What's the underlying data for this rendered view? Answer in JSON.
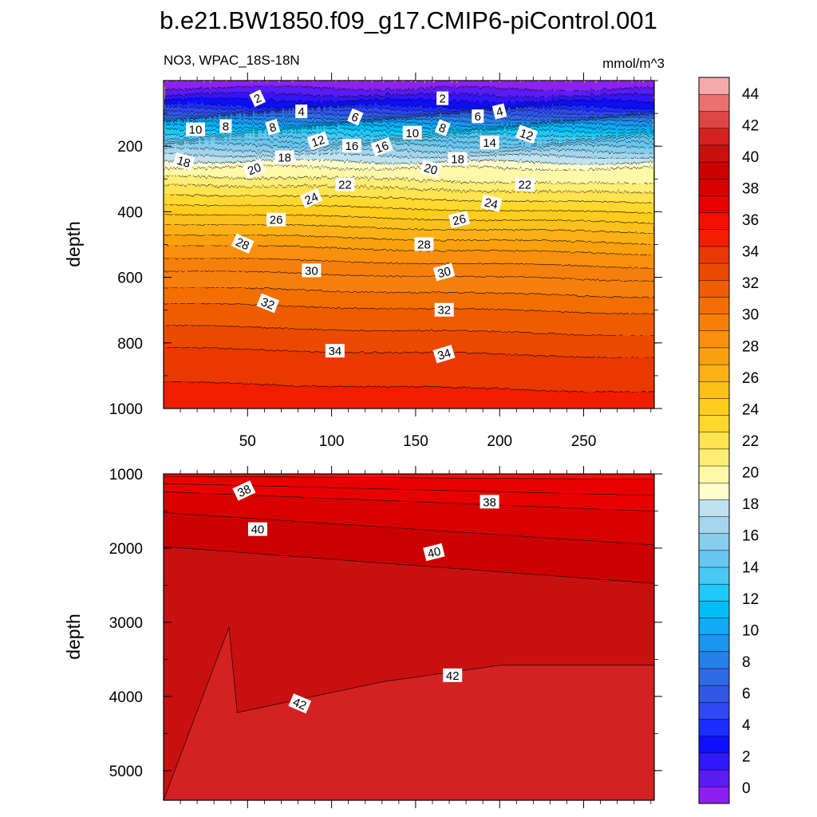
{
  "chart_data": {
    "type": "contour",
    "title": "b.e21.BW1850.f09_g17.CMIP6-piControl.001",
    "variable_label": "NO3, WPAC_18S-18N",
    "units_label": "mmol/m^3",
    "panels": [
      {
        "name": "upper-ocean",
        "ylabel": "depth",
        "ylim": [
          0,
          1000
        ],
        "xlim": [
          0,
          292
        ],
        "yticks": [
          200,
          400,
          600,
          800,
          1000
        ],
        "xticks": [
          50,
          100,
          150,
          200,
          250
        ],
        "isoline_labels": [
          {
            "value": "2",
            "x": 56,
            "depth": 55
          },
          {
            "value": "2",
            "x": 166,
            "depth": 55
          },
          {
            "value": "4",
            "x": 82,
            "depth": 95
          },
          {
            "value": "4",
            "x": 200,
            "depth": 95
          },
          {
            "value": "6",
            "x": 114,
            "depth": 112
          },
          {
            "value": "6",
            "x": 187,
            "depth": 110
          },
          {
            "value": "8",
            "x": 37,
            "depth": 140
          },
          {
            "value": "8",
            "x": 65,
            "depth": 143
          },
          {
            "value": "8",
            "x": 166,
            "depth": 145
          },
          {
            "value": "10",
            "x": 19,
            "depth": 150
          },
          {
            "value": "10",
            "x": 148,
            "depth": 160
          },
          {
            "value": "12",
            "x": 92,
            "depth": 185
          },
          {
            "value": "12",
            "x": 216,
            "depth": 165
          },
          {
            "value": "14",
            "x": 194,
            "depth": 190
          },
          {
            "value": "16",
            "x": 112,
            "depth": 200
          },
          {
            "value": "16",
            "x": 130,
            "depth": 203
          },
          {
            "value": "18",
            "x": 12,
            "depth": 248
          },
          {
            "value": "18",
            "x": 72,
            "depth": 235
          },
          {
            "value": "18",
            "x": 175,
            "depth": 240
          },
          {
            "value": "20",
            "x": 54,
            "depth": 270
          },
          {
            "value": "20",
            "x": 159,
            "depth": 270
          },
          {
            "value": "22",
            "x": 108,
            "depth": 318
          },
          {
            "value": "22",
            "x": 215,
            "depth": 318
          },
          {
            "value": "24",
            "x": 88,
            "depth": 360
          },
          {
            "value": "24",
            "x": 195,
            "depth": 375
          },
          {
            "value": "26",
            "x": 67,
            "depth": 425
          },
          {
            "value": "26",
            "x": 176,
            "depth": 425
          },
          {
            "value": "28",
            "x": 47,
            "depth": 498
          },
          {
            "value": "28",
            "x": 155,
            "depth": 500
          },
          {
            "value": "30",
            "x": 88,
            "depth": 580
          },
          {
            "value": "30",
            "x": 167,
            "depth": 585
          },
          {
            "value": "32",
            "x": 62,
            "depth": 680
          },
          {
            "value": "32",
            "x": 167,
            "depth": 700
          },
          {
            "value": "34",
            "x": 102,
            "depth": 825
          },
          {
            "value": "34",
            "x": 167,
            "depth": 835
          }
        ]
      },
      {
        "name": "deep-ocean",
        "ylabel": "depth",
        "ylim": [
          1000,
          5400
        ],
        "xlim": [
          0,
          292
        ],
        "yticks": [
          1000,
          2000,
          3000,
          4000,
          5000
        ],
        "isoline_labels": [
          {
            "value": "38",
            "x": 48,
            "depth": 1230
          },
          {
            "value": "38",
            "x": 194,
            "depth": 1380
          },
          {
            "value": "40",
            "x": 56,
            "depth": 1750
          },
          {
            "value": "40",
            "x": 161,
            "depth": 2060
          },
          {
            "value": "42",
            "x": 81,
            "depth": 4100
          },
          {
            "value": "42",
            "x": 172,
            "depth": 3720
          }
        ]
      }
    ],
    "colorbar": {
      "levels": [
        0,
        2,
        4,
        6,
        8,
        10,
        12,
        14,
        16,
        18,
        20,
        22,
        24,
        26,
        28,
        30,
        32,
        34,
        36,
        38,
        40,
        42,
        44
      ],
      "labels": [
        "0",
        "2",
        "4",
        "6",
        "8",
        "10",
        "12",
        "14",
        "16",
        "18",
        "20",
        "22",
        "24",
        "26",
        "28",
        "30",
        "32",
        "34",
        "36",
        "38",
        "40",
        "42",
        "44"
      ],
      "colors": [
        "#8b20f0",
        "#5a1bf5",
        "#3018f8",
        "#1010ff",
        "#1a2eff",
        "#2e49f2",
        "#3257e8",
        "#2f6ae6",
        "#2580e8",
        "#1a95f0",
        "#10aaf5",
        "#00bdf5",
        "#1ec8f7",
        "#48c8f4",
        "#66c6ef",
        "#87cdec",
        "#a3d6ed",
        "#bfe2f0",
        "#ffffcc",
        "#fff8a8",
        "#ffee75",
        "#ffe350",
        "#ffd82e",
        "#fdcc1e",
        "#fbc01a",
        "#fbb015",
        "#faa00f",
        "#f8900b",
        "#f57f08",
        "#f26e05",
        "#ef5c03",
        "#ec4a02",
        "#e93801",
        "#f21e00",
        "#f41000",
        "#e80000",
        "#d90000",
        "#cc0000",
        "#c81010",
        "#d42222",
        "#e04545",
        "#ec7070",
        "#f5aaaa"
      ]
    }
  }
}
